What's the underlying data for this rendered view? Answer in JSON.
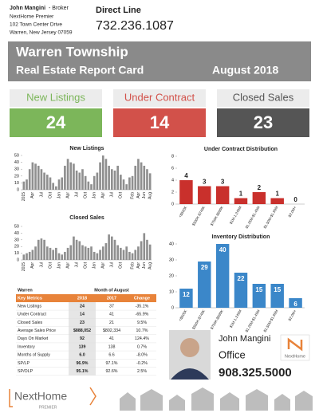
{
  "agent": {
    "name": "John Mangini",
    "role": "- Broker",
    "company": "NextHome Premier",
    "address": "102 Town Center Drive",
    "city": "Warren, New Jersey 07059",
    "direct_label": "Direct Line",
    "direct_phone": "732.236.1087"
  },
  "banner": {
    "town": "Warren Township",
    "title": "Real Estate Report Card",
    "period": "August 2018"
  },
  "cards": [
    {
      "label": "New Listings",
      "value": 24,
      "color": "#7cb65a"
    },
    {
      "label": "Under Contract",
      "value": 14,
      "color": "#d2514a"
    },
    {
      "label": "Closed Sales",
      "value": 23,
      "color": "#555555"
    }
  ],
  "chart_data": [
    {
      "type": "bar",
      "title": "New Listings",
      "color": "#8f8f8f",
      "categories": [
        "2015",
        null,
        null,
        "Apr",
        null,
        null,
        "Jul",
        null,
        null,
        "Oct",
        null,
        null,
        "Jan",
        null,
        null,
        "Apr",
        null,
        null,
        "Jul",
        null,
        null,
        "Oct",
        null,
        null,
        "Jan",
        null,
        null,
        "Apr",
        null,
        null,
        "Jul",
        null,
        null,
        "Oct",
        null,
        null,
        null,
        "Feb",
        null,
        "Apr",
        null,
        "Jun",
        null,
        "Aug"
      ],
      "values": [
        12,
        15,
        30,
        40,
        38,
        35,
        30,
        25,
        22,
        18,
        10,
        5,
        15,
        18,
        35,
        45,
        40,
        38,
        28,
        25,
        30,
        20,
        12,
        8,
        20,
        25,
        40,
        50,
        45,
        35,
        30,
        28,
        35,
        22,
        15,
        8,
        18,
        20,
        35,
        45,
        40,
        35,
        30,
        24
      ],
      "ylim": [
        0,
        50
      ],
      "yticks": [
        0,
        10,
        20,
        30,
        40,
        50
      ]
    },
    {
      "type": "bar",
      "title": "Closed Sales",
      "color": "#8f8f8f",
      "categories": [
        "2015",
        null,
        null,
        "Apr",
        null,
        null,
        "Jul",
        null,
        null,
        "Oct",
        null,
        null,
        "Jan",
        null,
        null,
        "Apr",
        null,
        null,
        "Jul",
        null,
        null,
        "Oct",
        null,
        null,
        "Jan",
        null,
        null,
        "Apr",
        null,
        null,
        "Jul",
        null,
        null,
        "Oct",
        null,
        null,
        null,
        "Feb",
        null,
        "Apr",
        null,
        "Jun",
        null,
        "Aug"
      ],
      "values": [
        8,
        10,
        12,
        15,
        20,
        30,
        32,
        30,
        20,
        18,
        15,
        18,
        10,
        8,
        12,
        18,
        22,
        35,
        30,
        28,
        22,
        20,
        18,
        20,
        12,
        10,
        15,
        20,
        25,
        38,
        35,
        30,
        22,
        18,
        15,
        20,
        12,
        10,
        15,
        20,
        28,
        40,
        30,
        23
      ],
      "ylim": [
        0,
        50
      ],
      "yticks": [
        0,
        10,
        20,
        30,
        40,
        50
      ]
    },
    {
      "type": "bar",
      "title": "Under Contract Distribution",
      "color": "#c9302c",
      "categories": [
        "<$500K",
        "$500K-$749K",
        "$750K-$999K",
        "$1M-1.249M",
        "$1.25M-$1.49M",
        "$1.50M-$1.99M",
        "$2.0M+"
      ],
      "values": [
        4,
        3,
        3,
        1,
        2,
        1,
        0
      ],
      "show_values": "outside",
      "ylim": [
        0,
        8
      ],
      "yticks": [
        0,
        2,
        4,
        6,
        8
      ]
    },
    {
      "type": "bar",
      "title": "Inventory Distribution",
      "color": "#3b87c9",
      "categories": [
        "<$500K",
        "$500K-$749K",
        "$750K-$999K",
        "$1M-1.249M",
        "$1.25M-$1.49M",
        "$1.50M-$1.99M",
        "$2.0M+"
      ],
      "values": [
        12,
        29,
        40,
        22,
        15,
        15,
        6
      ],
      "show_values": "inside",
      "ylim": [
        0,
        40
      ],
      "yticks": [
        0,
        10,
        20,
        30,
        40
      ]
    }
  ],
  "table": {
    "area": "Warren",
    "period": "Month of August",
    "header_color": "#e8833a",
    "columns": [
      "Key Metrics",
      "2018",
      "2017",
      "Change"
    ],
    "rows": [
      [
        "New Listings",
        "24",
        "37",
        "-35.1%"
      ],
      [
        "Under Contract",
        "14",
        "41",
        "-65.9%"
      ],
      [
        "Closed Sales",
        "23",
        "21",
        "9.5%"
      ],
      [
        "Average Sales Price",
        "$888,052",
        "$802,334",
        "10.7%"
      ],
      [
        "Days On Market",
        "92",
        "41",
        "124.4%"
      ],
      [
        "Inventory",
        "139",
        "138",
        "0.7%"
      ],
      [
        "Months of Supply",
        "6.0",
        "6.6",
        "-8.0%"
      ],
      [
        "SP/LP",
        "96.9%",
        "97.1%",
        "-0.2%"
      ],
      [
        "SP/OLP",
        "95.1%",
        "92.6%",
        "2.5%"
      ]
    ]
  },
  "contact": {
    "name": "John Mangini",
    "label": "Office",
    "phone": "908.325.5000",
    "brand": "NextHome"
  },
  "footer": {
    "brand": "NextHome",
    "sub": "PREMIER"
  }
}
